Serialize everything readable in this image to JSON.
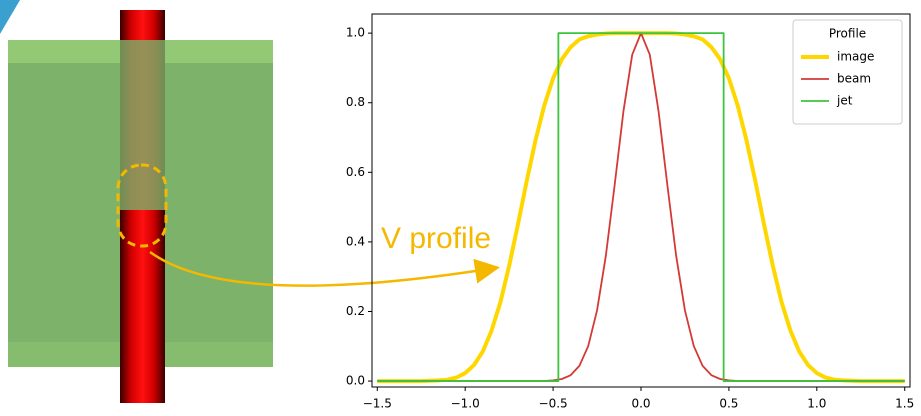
{
  "chart_data": {
    "type": "line",
    "annotation": "V profile",
    "xlim": [
      -1.53,
      1.53
    ],
    "ylim": [
      -0.017,
      1.055
    ],
    "xticks": [
      {
        "value": -1.5,
        "label": "−1.5"
      },
      {
        "value": -1,
        "label": "−1.0"
      },
      {
        "value": -0.5,
        "label": "−0.5"
      },
      {
        "value": 0,
        "label": "0.0"
      },
      0.5,
      {
        "value": 1,
        "label": "1.0"
      },
      1.5
    ],
    "yticks": [
      {
        "value": 0,
        "label": "0.0"
      },
      0.2,
      0.4,
      0.6,
      0.8,
      {
        "value": 1,
        "label": "1.0"
      }
    ],
    "grid": false,
    "legend": {
      "title": "Profile",
      "position": "upper right"
    },
    "series": [
      {
        "name": "image",
        "color": "#ffd700",
        "width": 4,
        "x": [
          -1.5,
          -1.45,
          -1.4,
          -1.35,
          -1.3,
          -1.25,
          -1.2,
          -1.15,
          -1.1,
          -1.05,
          -1,
          -0.95,
          -0.9,
          -0.85,
          -0.8,
          -0.75,
          -0.7,
          -0.65,
          -0.6,
          -0.55,
          -0.5,
          -0.45,
          -0.4,
          -0.35,
          -0.3,
          -0.25,
          -0.2,
          -0.15,
          -0.1,
          -0.05,
          0,
          0.05,
          0.1,
          0.15,
          0.2,
          0.25,
          0.3,
          0.35,
          0.4,
          0.45,
          0.5,
          0.55,
          0.6,
          0.65,
          0.7,
          0.75,
          0.8,
          0.85,
          0.9,
          0.95,
          1,
          1.05,
          1.1,
          1.15,
          1.2,
          1.25,
          1.3,
          1.35,
          1.4,
          1.45,
          1.5
        ],
        "values": [
          0,
          0,
          0,
          0,
          0,
          0,
          0.001,
          0.002,
          0.004,
          0.01,
          0.023,
          0.046,
          0.085,
          0.145,
          0.226,
          0.331,
          0.45,
          0.575,
          0.692,
          0.792,
          0.87,
          0.925,
          0.96,
          0.982,
          0.991,
          0.996,
          0.999,
          1,
          1,
          1,
          1,
          1,
          1,
          1,
          0.999,
          0.996,
          0.991,
          0.982,
          0.96,
          0.925,
          0.87,
          0.792,
          0.692,
          0.575,
          0.45,
          0.331,
          0.226,
          0.145,
          0.085,
          0.046,
          0.023,
          0.01,
          0.004,
          0.002,
          0.001,
          0,
          0,
          0,
          0,
          0,
          0
        ]
      },
      {
        "name": "beam",
        "color": "#d33a36",
        "width": 1.8,
        "x": [
          -1.5,
          -1.45,
          -1.4,
          -1.35,
          -1.3,
          -1.25,
          -1.2,
          -1.15,
          -1.1,
          -1.05,
          -1,
          -0.95,
          -0.9,
          -0.85,
          -0.8,
          -0.75,
          -0.7,
          -0.65,
          -0.6,
          -0.55,
          -0.5,
          -0.45,
          -0.4,
          -0.35,
          -0.3,
          -0.25,
          -0.2,
          -0.15,
          -0.1,
          -0.05,
          0,
          0.05,
          0.1,
          0.15,
          0.2,
          0.25,
          0.3,
          0.35,
          0.4,
          0.45,
          0.5,
          0.55,
          0.6,
          0.65,
          0.7,
          0.75,
          0.8,
          0.85,
          0.9,
          0.95,
          1,
          1.05,
          1.1,
          1.15,
          1.2,
          1.25,
          1.3,
          1.35,
          1.4,
          1.45,
          1.5
        ],
        "values": [
          0,
          0,
          0,
          0,
          0,
          0,
          0,
          0,
          0,
          0,
          0,
          0,
          0,
          0,
          0,
          0,
          0,
          0,
          0,
          0,
          0.002,
          0.006,
          0.017,
          0.044,
          0.101,
          0.203,
          0.36,
          0.563,
          0.775,
          0.938,
          1,
          0.938,
          0.775,
          0.563,
          0.36,
          0.203,
          0.101,
          0.044,
          0.017,
          0.006,
          0.002,
          0,
          0,
          0,
          0,
          0,
          0,
          0,
          0,
          0,
          0,
          0,
          0,
          0,
          0,
          0,
          0,
          0,
          0,
          0,
          0
        ]
      },
      {
        "name": "jet",
        "color": "#3cc43c",
        "width": 1.8,
        "x": [
          -1.5,
          -0.47,
          -0.47,
          0.47,
          0.47,
          1.5
        ],
        "values": [
          0,
          0,
          1,
          1,
          0,
          0
        ]
      }
    ]
  }
}
